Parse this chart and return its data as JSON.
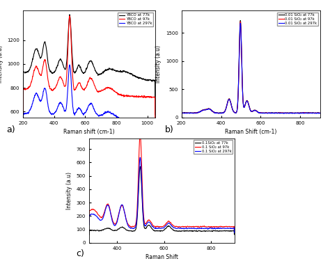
{
  "panel_a": {
    "xlabel": "Raman shift (cm-1)",
    "ylabel": "Intensity (a.u)",
    "xlim": [
      200,
      1050
    ],
    "ylim": [
      550,
      1450
    ],
    "yticks": [
      600,
      800,
      1000,
      1200
    ],
    "xticks": [
      200,
      400,
      600,
      800,
      1000
    ],
    "legend": [
      "YBCO at 77k",
      "YBCO at 97k",
      "YBCO at 297k"
    ],
    "colors": [
      "black",
      "red",
      "blue"
    ]
  },
  "panel_b": {
    "xlabel": "Raman Shift (cm-1)",
    "ylabel": "Intensity (a.u)",
    "xlim": [
      200,
      900
    ],
    "ylim": [
      0,
      1900
    ],
    "yticks": [
      0,
      500,
      1000,
      1500
    ],
    "xticks": [
      200,
      400,
      600,
      800
    ],
    "legend": [
      "0.01 SiO₂ at 77k",
      "0.01 SiO₂ at 97k",
      "0.01 SiO₂ at 297k"
    ],
    "colors": [
      "black",
      "red",
      "blue"
    ]
  },
  "panel_c": {
    "xlabel": "Raman Shift",
    "ylabel": "Intensity (a.u)",
    "xlim": [
      280,
      900
    ],
    "ylim": [
      0,
      780
    ],
    "yticks": [
      0,
      100,
      200,
      300,
      400,
      500,
      600,
      700
    ],
    "xticks": [
      400,
      600,
      800
    ],
    "legend": [
      "0.1SiO₂ at 77k",
      "0.1 SiO₂ at 97k",
      "0.1 SiO₂ at 297k"
    ],
    "colors": [
      "black",
      "red",
      "blue"
    ]
  },
  "labels": [
    "a)",
    "b)",
    "c)"
  ]
}
